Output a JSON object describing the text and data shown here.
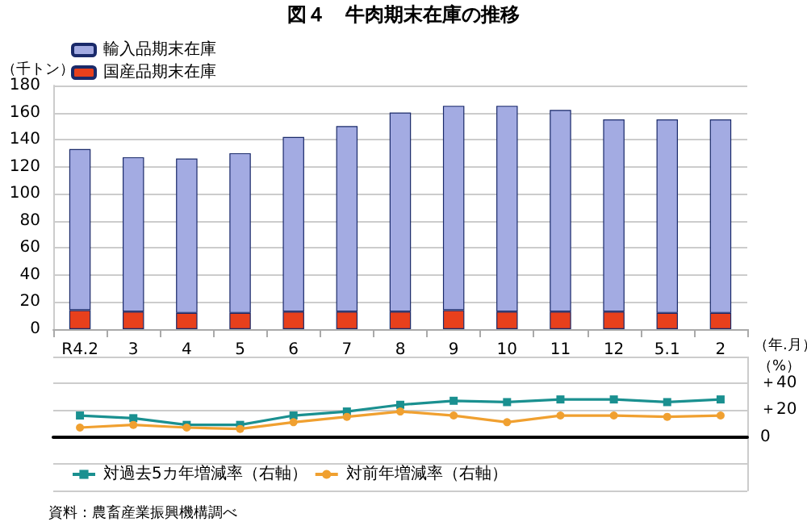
{
  "chart_data": [
    {
      "type": "bar",
      "title": "図４　牛肉期末在庫の推移",
      "ylabel": "（千トン）",
      "xlabel": "（年.月）",
      "stacked": true,
      "categories": [
        "R4.2",
        "3",
        "4",
        "5",
        "6",
        "7",
        "8",
        "9",
        "10",
        "11",
        "12",
        "5.1",
        "2"
      ],
      "series": [
        {
          "name": "国産品期末在庫",
          "color": "#e8401c",
          "values": [
            14,
            13,
            12,
            12,
            13,
            13,
            13,
            14,
            13,
            13,
            13,
            12,
            12
          ]
        },
        {
          "name": "輸入品期末在庫",
          "color": "#a3abe2",
          "values": [
            119,
            114,
            114,
            118,
            129,
            137,
            147,
            151,
            152,
            149,
            142,
            143,
            143
          ]
        }
      ],
      "ylim": [
        0,
        180
      ],
      "yticks": [
        0,
        20,
        40,
        60,
        80,
        100,
        120,
        140,
        160,
        180
      ],
      "grid": "y",
      "legend": "top left"
    },
    {
      "type": "line",
      "ylabel": "（%）",
      "tick_labels": "y",
      "categories": [
        null,
        null,
        null,
        null,
        null,
        null,
        null,
        null,
        null,
        null,
        null,
        null,
        null
      ],
      "series": [
        {
          "name": "対前年増減率（右軸）",
          "color": "#f0a030",
          "marker": "circle",
          "values": [
            7,
            9,
            7,
            6,
            11,
            15,
            19,
            16,
            11,
            16,
            16,
            15,
            16
          ]
        },
        {
          "name": "対過去5カ年増減率（右軸）",
          "color": "#1a9090",
          "marker": "square",
          "values": [
            16,
            14,
            9,
            9,
            16,
            19,
            24,
            27,
            26,
            28,
            28,
            26,
            28
          ]
        }
      ],
      "ylim": [
        -40,
        60
      ],
      "yticks": [
        {
          "value": -40,
          "label": null
        },
        {
          "value": -20,
          "label": null
        },
        {
          "value": 0,
          "label": "0"
        },
        {
          "value": 20,
          "label": "＋20"
        },
        {
          "value": 40,
          "label": "＋40"
        },
        {
          "value": 60,
          "label": null
        }
      ],
      "grid": "y",
      "legend": "bottom left",
      "annotations": [
        "資料：農畜産業振興機構調べ"
      ]
    }
  ]
}
